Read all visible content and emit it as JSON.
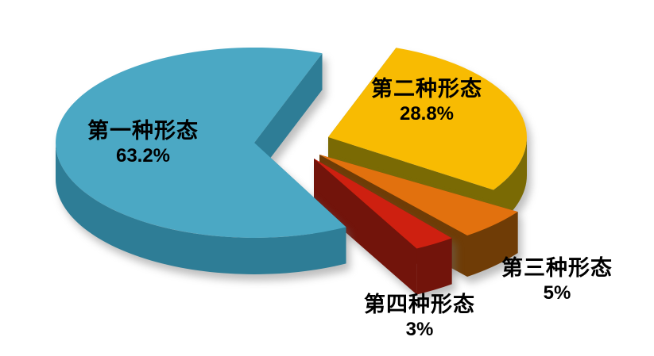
{
  "chart_data": {
    "type": "pie",
    "style": "3d-exploded-pie",
    "background": "#FFFFFF",
    "legend_position": "none",
    "labels_on_chart": true,
    "start_angle_deg": 20,
    "direction": "clockwise",
    "slices": [
      {
        "label": "第一种形态",
        "value": 63.2,
        "value_label": "63.2%",
        "color": "#4BA8C4",
        "side_color": "#2E7D96"
      },
      {
        "label": "第二种形态",
        "value": 28.8,
        "value_label": "28.8%",
        "color": "#F8BB02",
        "side_color": "#7A6A04"
      },
      {
        "label": "第三种形态",
        "value": 5,
        "value_label": "5%",
        "color": "#E2710E",
        "side_color": "#6F3C06"
      },
      {
        "label": "第四种形态",
        "value": 3,
        "value_label": "3%",
        "color": "#CE2010",
        "side_color": "#72140B"
      }
    ]
  }
}
